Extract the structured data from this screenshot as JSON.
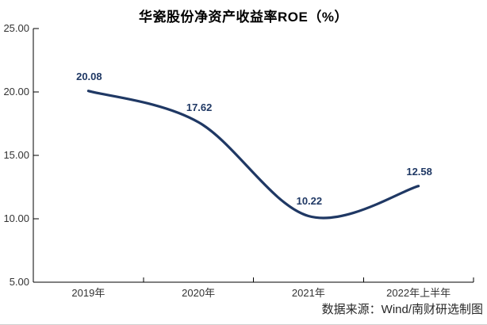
{
  "page": {
    "background": "#ffffff",
    "source_note": "数据来源：Wind/南财研选制图"
  },
  "chart_data": {
    "type": "line",
    "smooth": true,
    "title": "华瓷股份净资产收益率ROE（%）",
    "categories": [
      "2019年",
      "2020年",
      "2021年",
      "2022年上半年"
    ],
    "values": [
      20.08,
      17.62,
      10.22,
      12.58
    ],
    "data_labels": [
      "20.08",
      "17.62",
      "10.22",
      "12.58"
    ],
    "ylabel": "",
    "xlabel": "",
    "ylim": [
      5,
      25
    ],
    "y_ticks": [
      {
        "value": 25,
        "label": "25.00"
      },
      {
        "value": 20,
        "label": "20.00"
      },
      {
        "value": 15,
        "label": "15.00"
      },
      {
        "value": 10,
        "label": "10.00"
      },
      {
        "value": 5,
        "label": "5.00"
      }
    ],
    "grid": false,
    "legend": "none",
    "markers": "none",
    "colors": {
      "line": "#1f3864",
      "data_label": "#1f3864",
      "axis": "#000000",
      "tick_label": "#333333",
      "title": "#000000",
      "source": "#262626"
    }
  }
}
